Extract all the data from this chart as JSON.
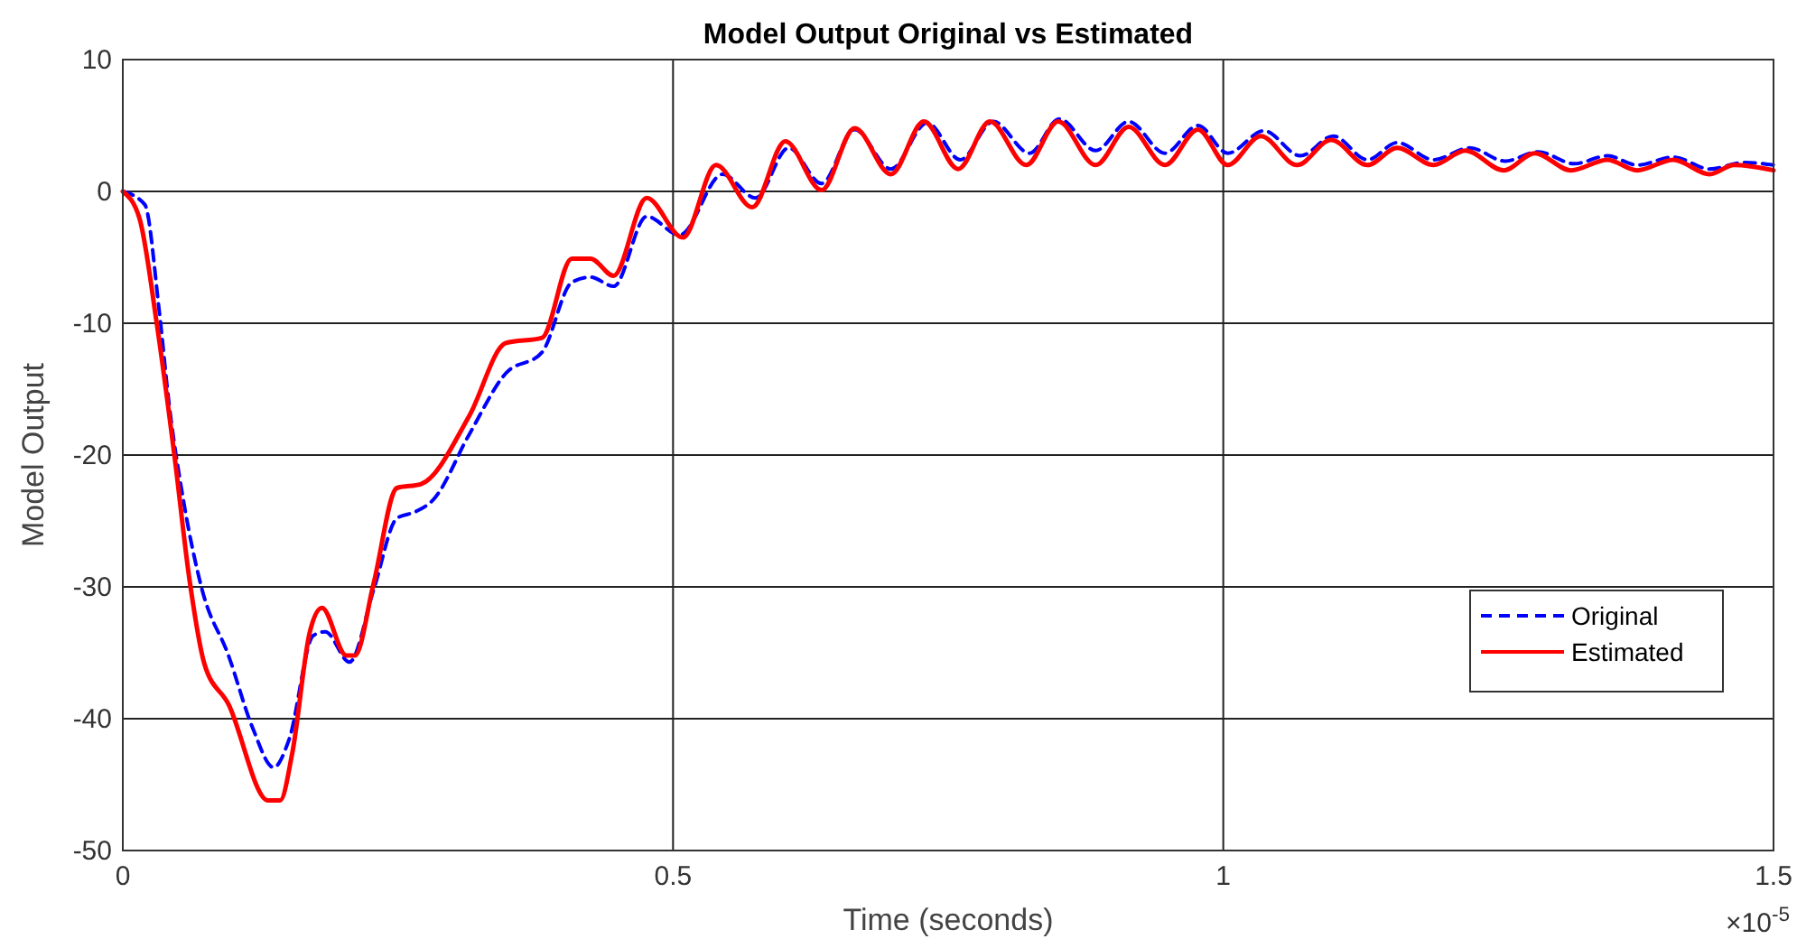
{
  "chart_data": {
    "type": "line",
    "title": "Model Output Original vs Estimated",
    "xlabel": "Time (seconds)",
    "ylabel": "Model Output",
    "annotations": [
      "×10$^{-5}$"
    ],
    "xlim": [
      0,
      1.5
    ],
    "xticks": [
      0,
      0.5,
      1,
      1.5
    ],
    "ylim": [
      -50,
      10
    ],
    "yticks": [
      -50,
      -40,
      -30,
      -20,
      -10,
      0,
      10
    ],
    "grid": true,
    "legend": "bottom right",
    "series": [
      {
        "name": "Original",
        "color": "#0000ff",
        "line_style": "dashed",
        "x": [
          0,
          0.02,
          0.033,
          0.042,
          0.055,
          0.072,
          0.096,
          0.118,
          0.137,
          0.151,
          0.173,
          0.184,
          0.206,
          0.228,
          0.249,
          0.266,
          0.282,
          0.315,
          0.348,
          0.381,
          0.408,
          0.425,
          0.446,
          0.476,
          0.506,
          0.545,
          0.575,
          0.605,
          0.635,
          0.665,
          0.698,
          0.731,
          0.761,
          0.791,
          0.824,
          0.851,
          0.884,
          0.914,
          0.947,
          0.977,
          1.004,
          1.037,
          1.07,
          1.1,
          1.131,
          1.158,
          1.191,
          1.224,
          1.256,
          1.286,
          1.319,
          1.349,
          1.376,
          1.409,
          1.442,
          1.474,
          1.5
        ],
        "values": [
          0,
          -1,
          -9,
          -16.1,
          -23.4,
          -30.2,
          -35.2,
          -40.7,
          -43.7,
          -41.6,
          -33.7,
          -33.4,
          -35.7,
          -30.2,
          -24.8,
          -24.3,
          -23.4,
          -18.4,
          -13.8,
          -12.2,
          -6.9,
          -6.5,
          -7.2,
          -1.9,
          -3.3,
          1.3,
          -0.5,
          3.3,
          0.6,
          4.7,
          1.7,
          5.2,
          2.4,
          5.3,
          2.9,
          5.5,
          3.1,
          5.3,
          2.9,
          5,
          2.9,
          4.6,
          2.7,
          4.2,
          2.4,
          3.7,
          2.4,
          3.3,
          2.3,
          3,
          2.1,
          2.7,
          2,
          2.6,
          1.7,
          2.2,
          2
        ]
      },
      {
        "name": "Estimated",
        "color": "#ff0000",
        "line_style": "solid",
        "x": [
          0,
          0.015,
          0.031,
          0.047,
          0.061,
          0.074,
          0.096,
          0.132,
          0.143,
          0.154,
          0.17,
          0.181,
          0.203,
          0.211,
          0.228,
          0.249,
          0.271,
          0.315,
          0.348,
          0.381,
          0.408,
          0.425,
          0.446,
          0.476,
          0.509,
          0.539,
          0.572,
          0.602,
          0.635,
          0.665,
          0.698,
          0.728,
          0.759,
          0.788,
          0.821,
          0.85,
          0.884,
          0.914,
          0.947,
          0.977,
          1.004,
          1.034,
          1.067,
          1.098,
          1.131,
          1.158,
          1.191,
          1.22,
          1.255,
          1.283,
          1.316,
          1.349,
          1.376,
          1.409,
          1.442,
          1.464,
          1.5
        ],
        "values": [
          0,
          -2,
          -10.1,
          -20.1,
          -29.7,
          -35.8,
          -38.9,
          -46.2,
          -46.2,
          -42.6,
          -33.4,
          -31.6,
          -35.2,
          -35.2,
          -29.7,
          -22.5,
          -22.2,
          -17,
          -11.5,
          -11.1,
          -5.1,
          -5.1,
          -6.4,
          -0.5,
          -3.5,
          2,
          -1.2,
          3.8,
          0.1,
          4.8,
          1.3,
          5.3,
          1.7,
          5.3,
          2,
          5.3,
          2,
          4.9,
          2,
          4.7,
          2,
          4.2,
          2,
          3.9,
          2,
          3.3,
          2,
          3.1,
          1.6,
          2.9,
          1.6,
          2.4,
          1.6,
          2.4,
          1.3,
          2,
          1.6
        ]
      }
    ]
  }
}
